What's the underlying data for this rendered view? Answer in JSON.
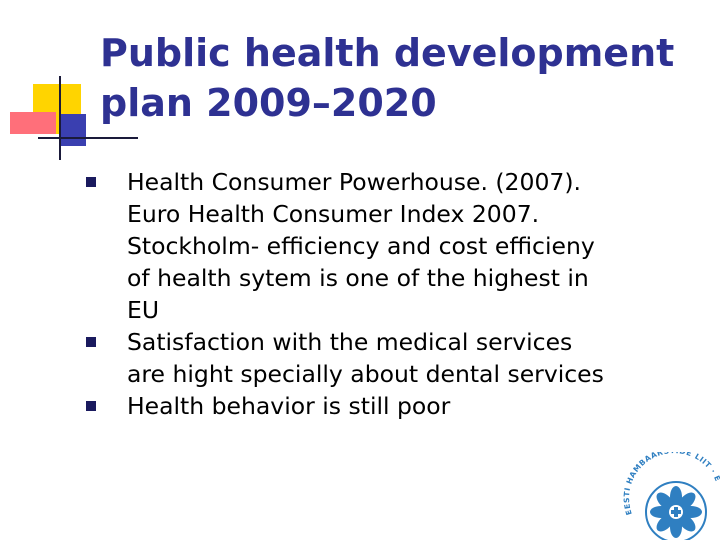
{
  "slide": {
    "title_lines": [
      "Public health development",
      "plan 2009–2020"
    ],
    "bullets": [
      {
        "lines": [
          "Health Consumer Powerhouse. (2007).",
          "Euro Health Consumer Index 2007.",
          "Stockholm-  efficiency and cost efficieny",
          "of health sytem is one of the highest in",
          "EU"
        ]
      },
      {
        "lines": [
          "Satisfaction with the medical services",
          "are hight specially about dental services"
        ]
      },
      {
        "lines": [
          "Health behavior is still poor"
        ]
      }
    ],
    "logo_text": "EESTI HAMBAARSTIDE LIIT · ESTONIAN DENTAL ASSOCIATION",
    "colors": {
      "title": "#2e3192",
      "bullet_marker": "#1a1a5e",
      "logo": "#2f7fc1",
      "deco_yellow": "#ffd400",
      "deco_pink": "#ff6f7a",
      "deco_blue": "#3a3fb0"
    }
  }
}
